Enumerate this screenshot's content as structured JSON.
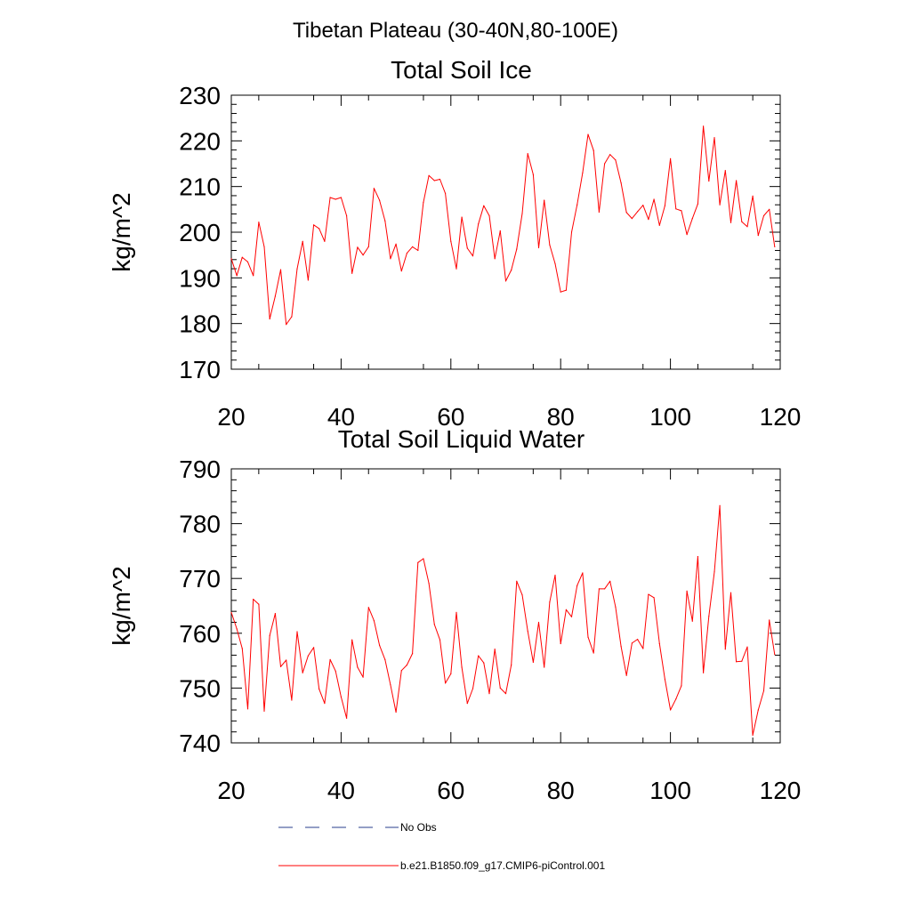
{
  "figure_title": "Tibetan Plateau (30-40N,80-100E)",
  "chart_data": [
    {
      "type": "line",
      "title": "Total Soil Ice",
      "xlabel": "",
      "ylabel": "kg/m^2",
      "xlim": [
        20,
        120
      ],
      "ylim": [
        170,
        230
      ],
      "xticks": [
        20,
        40,
        60,
        80,
        100,
        120
      ],
      "yticks": [
        170,
        180,
        190,
        200,
        210,
        220,
        230
      ],
      "series": [
        {
          "name": "b.e21.B1850.f09_g17.CMIP6-piControl.001",
          "color": "#ff0000",
          "x": [
            20,
            21,
            22,
            23,
            24,
            25,
            26,
            27,
            28,
            29,
            30,
            31,
            32,
            33,
            34,
            35,
            36,
            37,
            38,
            39,
            40,
            41,
            42,
            43,
            44,
            45,
            46,
            47,
            48,
            49,
            50,
            51,
            52,
            53,
            54,
            55,
            56,
            57,
            58,
            59,
            60,
            61,
            62,
            63,
            64,
            65,
            66,
            67,
            68,
            69,
            70,
            71,
            72,
            73,
            74,
            75,
            76,
            77,
            78,
            79,
            80,
            81,
            82,
            83,
            84,
            85,
            86,
            87,
            88,
            89,
            90,
            91,
            92,
            93,
            94,
            95,
            96,
            97,
            98,
            99,
            100,
            101,
            102,
            103,
            104,
            105,
            106,
            107,
            108,
            109,
            110,
            111,
            112,
            113,
            114,
            115,
            116,
            117,
            118,
            119
          ],
          "y": [
            194.2,
            190.5,
            194.5,
            193.5,
            190.5,
            202.2,
            196.8,
            181.0,
            186.0,
            191.8,
            179.8,
            181.5,
            192.0,
            198.0,
            189.5,
            201.6,
            200.8,
            198.0,
            207.6,
            207.2,
            207.6,
            203.6,
            191.0,
            196.7,
            195.0,
            196.8,
            209.6,
            207.0,
            202.5,
            194.2,
            197.4,
            191.5,
            195.4,
            196.8,
            196.0,
            206.5,
            212.4,
            211.3,
            211.6,
            208.5,
            198.0,
            192.0,
            203.3,
            196.5,
            194.8,
            201.8,
            205.8,
            203.6,
            194.2,
            200.3,
            189.3,
            191.7,
            196.3,
            204.1,
            217.2,
            212.6,
            196.6,
            207.0,
            197.2,
            193.1,
            186.9,
            187.3,
            200.0,
            206.0,
            213.0,
            221.4,
            217.9,
            204.4,
            215.0,
            217.0,
            215.8,
            210.8,
            204.3,
            203.0,
            204.5,
            205.9,
            202.8,
            207.2,
            201.5,
            205.8,
            216.1,
            205.1,
            204.7,
            199.5,
            203.0,
            206.2,
            223.2,
            211.2,
            220.7,
            206.0,
            213.5,
            202.1,
            211.3,
            202.3,
            201.2,
            207.9,
            199.3,
            203.6,
            205.0,
            196.8
          ]
        }
      ]
    },
    {
      "type": "line",
      "title": "Total Soil Liquid Water",
      "xlabel": "",
      "ylabel": "kg/m^2",
      "xlim": [
        20,
        120
      ],
      "ylim": [
        740,
        790
      ],
      "xticks": [
        20,
        40,
        60,
        80,
        100,
        120
      ],
      "yticks": [
        740,
        750,
        760,
        770,
        780,
        790
      ],
      "series": [
        {
          "name": "b.e21.B1850.f09_g17.CMIP6-piControl.001",
          "color": "#ff0000",
          "x": [
            20,
            21,
            22,
            23,
            24,
            25,
            26,
            27,
            28,
            29,
            30,
            31,
            32,
            33,
            34,
            35,
            36,
            37,
            38,
            39,
            40,
            41,
            42,
            43,
            44,
            45,
            46,
            47,
            48,
            49,
            50,
            51,
            52,
            53,
            54,
            55,
            56,
            57,
            58,
            59,
            60,
            61,
            62,
            63,
            64,
            65,
            66,
            67,
            68,
            69,
            70,
            71,
            72,
            73,
            74,
            75,
            76,
            77,
            78,
            79,
            80,
            81,
            82,
            83,
            84,
            85,
            86,
            87,
            88,
            89,
            90,
            91,
            92,
            93,
            94,
            95,
            96,
            97,
            98,
            99,
            100,
            101,
            102,
            103,
            104,
            105,
            106,
            107,
            108,
            109,
            110,
            111,
            112,
            113,
            114,
            115,
            116,
            117,
            118,
            119
          ],
          "y": [
            763.8,
            760.8,
            757.2,
            746.2,
            766.2,
            765.3,
            745.8,
            759.6,
            763.6,
            753.9,
            755.1,
            747.8,
            760.3,
            752.8,
            755.9,
            757.4,
            749.8,
            747.2,
            755.2,
            753.1,
            748.4,
            744.5,
            758.8,
            753.8,
            752.0,
            764.7,
            762.3,
            757.8,
            755.2,
            750.6,
            745.6,
            753.2,
            754.2,
            756.3,
            772.9,
            773.6,
            769.1,
            761.6,
            758.8,
            750.9,
            752.6,
            763.8,
            753.8,
            747.2,
            749.9,
            755.9,
            754.6,
            749.0,
            757.1,
            750.0,
            749.0,
            754.2,
            769.5,
            767.0,
            760.4,
            754.7,
            762.0,
            753.8,
            765.7,
            770.6,
            758.1,
            764.3,
            763.0,
            768.7,
            771.0,
            759.3,
            756.4,
            768.1,
            768.1,
            769.5,
            764.8,
            757.6,
            752.3,
            758.2,
            758.9,
            757.2,
            767.1,
            766.5,
            758.1,
            751.6,
            746.0,
            748.0,
            750.4,
            767.7,
            762.2,
            774.0,
            752.8,
            763.1,
            771.2,
            783.3,
            757.1,
            767.4,
            754.8,
            754.9,
            757.5,
            741.4,
            746.0,
            749.5,
            762.4,
            756.1
          ]
        }
      ]
    }
  ],
  "legend": [
    {
      "label": "No Obs",
      "color": "#2a3c8c",
      "style": "dashed"
    },
    {
      "label": "b.e21.B1850.f09_g17.CMIP6-piControl.001",
      "color": "#ff0000",
      "style": "solid"
    }
  ]
}
